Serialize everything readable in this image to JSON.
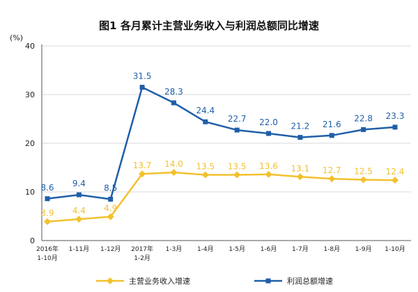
{
  "chart_data": {
    "type": "line",
    "title": "图1  各月累计主营业务收入与利润总额同比增速",
    "unit": "(%)",
    "ylim": [
      0,
      40
    ],
    "yticks": [
      "0",
      "10",
      "20",
      "30",
      "40"
    ],
    "x_tick_label_lines": [
      [
        "2016年",
        "1-10月"
      ],
      [
        "1-11月"
      ],
      [
        "1-12月"
      ],
      [
        "2017年",
        "1-2月"
      ],
      [
        "1-3月"
      ],
      [
        "1-4月"
      ],
      [
        "1-5月"
      ],
      [
        "1-6月"
      ],
      [
        "1-7月"
      ],
      [
        "1-8月"
      ],
      [
        "1-9月"
      ],
      [
        "1-10月"
      ]
    ],
    "series": [
      {
        "name": "主营业务收入增速",
        "color": "#F2C12E",
        "marker": "diamond",
        "values": [
          3.9,
          4.4,
          4.9,
          13.7,
          14.0,
          13.5,
          13.5,
          13.6,
          13.1,
          12.7,
          12.5,
          12.4
        ],
        "labels": [
          "3.9",
          "4.4",
          "4.9",
          "13.7",
          "14.0",
          "13.5",
          "13.5",
          "13.6",
          "13.1",
          "12.7",
          "12.5",
          "12.4"
        ]
      },
      {
        "name": "利润总额增速",
        "color": "#1F5EA8",
        "marker": "square",
        "values": [
          8.6,
          9.4,
          8.5,
          31.5,
          28.3,
          24.4,
          22.7,
          22.0,
          21.2,
          21.6,
          22.8,
          23.3
        ],
        "labels": [
          "8.6",
          "9.4",
          "8.5",
          "31.5",
          "28.3",
          "24.4",
          "22.7",
          "22.0",
          "21.2",
          "21.6",
          "22.8",
          "23.3"
        ]
      }
    ],
    "legend_position": "bottom"
  }
}
